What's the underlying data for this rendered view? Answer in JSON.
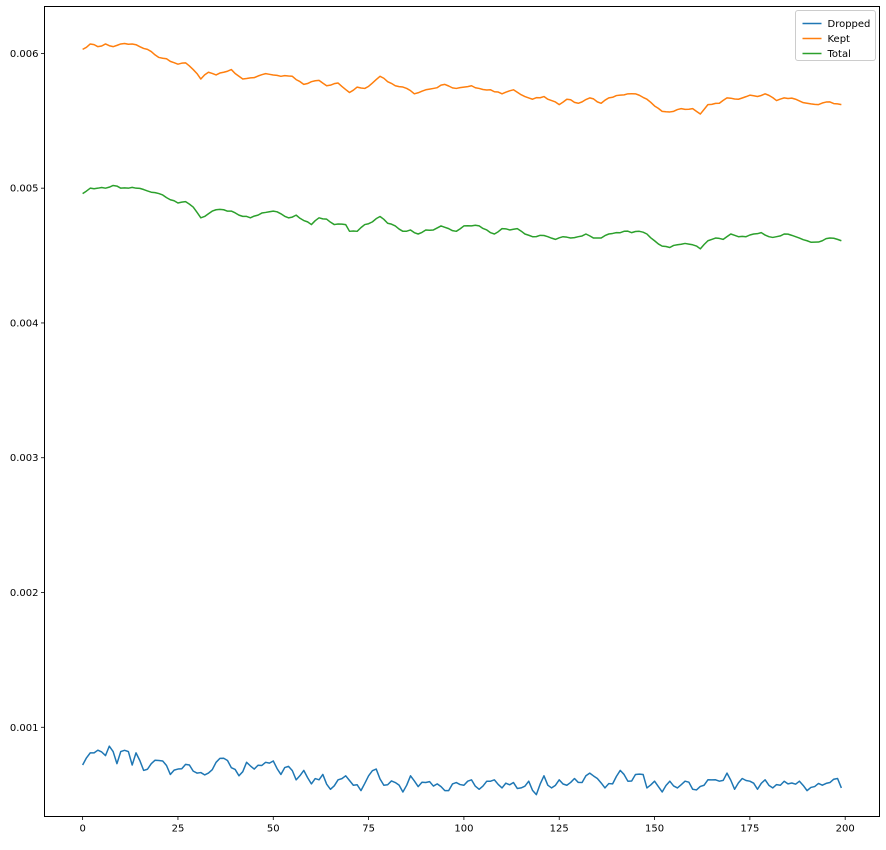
{
  "chart_data": {
    "type": "line",
    "title": "",
    "xlabel": "",
    "ylabel": "",
    "xlim": [
      -10,
      209
    ],
    "ylim": [
      0.000338,
      0.006348
    ],
    "xticks": [
      0,
      25,
      50,
      75,
      100,
      125,
      150,
      175,
      200
    ],
    "xtick_labels": [
      "0",
      "25",
      "50",
      "75",
      "100",
      "125",
      "150",
      "175",
      "200"
    ],
    "yticks": [
      0.001,
      0.002,
      0.003,
      0.004,
      0.005,
      0.006
    ],
    "ytick_labels": [
      "0.001",
      "0.002",
      "0.003",
      "0.004",
      "0.005",
      "0.006"
    ],
    "grid": false,
    "legend": "top-right",
    "series": [
      {
        "name": "Dropped",
        "color": "#1f77b4",
        "keypoints": [
          [
            0,
            0.00072
          ],
          [
            2,
            0.00081
          ],
          [
            4,
            0.00083
          ],
          [
            6,
            0.00079
          ],
          [
            7,
            0.00086
          ],
          [
            9,
            0.00073
          ],
          [
            10,
            0.00082
          ],
          [
            12,
            0.00082
          ],
          [
            13,
            0.00072
          ],
          [
            14,
            0.00081
          ],
          [
            16,
            0.00068
          ],
          [
            18,
            0.00073
          ],
          [
            21,
            0.00075
          ],
          [
            23,
            0.00065
          ],
          [
            25,
            0.00069
          ],
          [
            28,
            0.00072
          ],
          [
            30,
            0.00066
          ],
          [
            33,
            0.00066
          ],
          [
            35,
            0.00074
          ],
          [
            37,
            0.00077
          ],
          [
            39,
            0.0007
          ],
          [
            41,
            0.00064
          ],
          [
            43,
            0.00074
          ],
          [
            45,
            0.00069
          ],
          [
            48,
            0.00074
          ],
          [
            50,
            0.00075
          ],
          [
            52,
            0.00065
          ],
          [
            54,
            0.00071
          ],
          [
            56,
            0.00061
          ],
          [
            58,
            0.00068
          ],
          [
            60,
            0.00058
          ],
          [
            63,
            0.00065
          ],
          [
            65,
            0.00054
          ],
          [
            67,
            0.00061
          ],
          [
            69,
            0.00064
          ],
          [
            71,
            0.00057
          ],
          [
            73,
            0.00053
          ],
          [
            75,
            0.00064
          ],
          [
            77,
            0.00069
          ],
          [
            79,
            0.00057
          ],
          [
            82,
            0.00059
          ],
          [
            84,
            0.00052
          ],
          [
            86,
            0.00064
          ],
          [
            88,
            0.00056
          ],
          [
            90,
            0.00059
          ],
          [
            93,
            0.00058
          ],
          [
            95,
            0.00053
          ],
          [
            98,
            0.00059
          ],
          [
            100,
            0.00057
          ],
          [
            102,
            0.00061
          ],
          [
            104,
            0.00054
          ],
          [
            106,
            0.0006
          ],
          [
            108,
            0.00061
          ],
          [
            110,
            0.00055
          ],
          [
            113,
            0.00059
          ],
          [
            115,
            0.00055
          ],
          [
            117,
            0.0006
          ],
          [
            119,
            0.0005
          ],
          [
            121,
            0.00064
          ],
          [
            123,
            0.00055
          ],
          [
            125,
            0.00061
          ],
          [
            127,
            0.00057
          ],
          [
            129,
            0.00062
          ],
          [
            131,
            0.00059
          ],
          [
            133,
            0.00066
          ],
          [
            135,
            0.00062
          ],
          [
            137,
            0.00055
          ],
          [
            139,
            0.00058
          ],
          [
            141,
            0.00068
          ],
          [
            143,
            0.0006
          ],
          [
            145,
            0.00065
          ],
          [
            147,
            0.00065
          ],
          [
            148,
            0.00055
          ],
          [
            150,
            0.0006
          ],
          [
            152,
            0.00052
          ],
          [
            154,
            0.0006
          ],
          [
            156,
            0.00055
          ],
          [
            158,
            0.0006
          ],
          [
            160,
            0.00054
          ],
          [
            163,
            0.00057
          ],
          [
            165,
            0.00061
          ],
          [
            167,
            0.0006
          ],
          [
            169,
            0.00066
          ],
          [
            171,
            0.00054
          ],
          [
            173,
            0.00062
          ],
          [
            175,
            0.0006
          ],
          [
            177,
            0.00054
          ],
          [
            179,
            0.00061
          ],
          [
            181,
            0.00055
          ],
          [
            183,
            0.00057
          ],
          [
            185,
            0.00058
          ],
          [
            188,
            0.0006
          ],
          [
            190,
            0.00053
          ],
          [
            192,
            0.00056
          ],
          [
            194,
            0.00057
          ],
          [
            196,
            0.00059
          ],
          [
            198,
            0.00062
          ],
          [
            199,
            0.00055
          ]
        ]
      },
      {
        "name": "Kept",
        "color": "#ff7f0e",
        "keypoints": [
          [
            0,
            0.00603
          ],
          [
            2,
            0.00607
          ],
          [
            4,
            0.00605
          ],
          [
            6,
            0.00607
          ],
          [
            8,
            0.00605
          ],
          [
            10,
            0.00607
          ],
          [
            13,
            0.00607
          ],
          [
            15,
            0.00605
          ],
          [
            17,
            0.00603
          ],
          [
            20,
            0.00597
          ],
          [
            22,
            0.00596
          ],
          [
            25,
            0.00592
          ],
          [
            27,
            0.00593
          ],
          [
            30,
            0.00585
          ],
          [
            31,
            0.00581
          ],
          [
            33,
            0.00586
          ],
          [
            35,
            0.00584
          ],
          [
            37,
            0.00586
          ],
          [
            39,
            0.00588
          ],
          [
            42,
            0.00581
          ],
          [
            45,
            0.00582
          ],
          [
            48,
            0.00585
          ],
          [
            50,
            0.00584
          ],
          [
            52,
            0.00583
          ],
          [
            55,
            0.00583
          ],
          [
            58,
            0.00577
          ],
          [
            60,
            0.00579
          ],
          [
            62,
            0.0058
          ],
          [
            64,
            0.00576
          ],
          [
            67,
            0.00578
          ],
          [
            70,
            0.00571
          ],
          [
            72,
            0.00575
          ],
          [
            74,
            0.00574
          ],
          [
            76,
            0.00578
          ],
          [
            78,
            0.00583
          ],
          [
            80,
            0.00579
          ],
          [
            82,
            0.00576
          ],
          [
            85,
            0.00574
          ],
          [
            87,
            0.0057
          ],
          [
            90,
            0.00573
          ],
          [
            92,
            0.00574
          ],
          [
            95,
            0.00577
          ],
          [
            98,
            0.00574
          ],
          [
            100,
            0.00575
          ],
          [
            102,
            0.00576
          ],
          [
            104,
            0.00574
          ],
          [
            107,
            0.00573
          ],
          [
            110,
            0.0057
          ],
          [
            113,
            0.00573
          ],
          [
            116,
            0.00568
          ],
          [
            118,
            0.00566
          ],
          [
            121,
            0.00568
          ],
          [
            123,
            0.00565
          ],
          [
            125,
            0.00562
          ],
          [
            127,
            0.00566
          ],
          [
            130,
            0.00563
          ],
          [
            133,
            0.00567
          ],
          [
            136,
            0.00563
          ],
          [
            138,
            0.00567
          ],
          [
            141,
            0.00569
          ],
          [
            143,
            0.0057
          ],
          [
            145,
            0.0057
          ],
          [
            148,
            0.00566
          ],
          [
            150,
            0.00561
          ],
          [
            152,
            0.00557
          ],
          [
            155,
            0.00557
          ],
          [
            157,
            0.00559
          ],
          [
            160,
            0.00559
          ],
          [
            162,
            0.00555
          ],
          [
            164,
            0.00562
          ],
          [
            167,
            0.00563
          ],
          [
            169,
            0.00567
          ],
          [
            172,
            0.00566
          ],
          [
            175,
            0.00569
          ],
          [
            177,
            0.00568
          ],
          [
            179,
            0.0057
          ],
          [
            182,
            0.00565
          ],
          [
            184,
            0.00567
          ],
          [
            187,
            0.00566
          ],
          [
            190,
            0.00563
          ],
          [
            193,
            0.00562
          ],
          [
            196,
            0.00564
          ],
          [
            199,
            0.00562
          ]
        ]
      },
      {
        "name": "Total",
        "color": "#2ca02c",
        "keypoints": [
          [
            0,
            0.00496
          ],
          [
            2,
            0.005
          ],
          [
            4,
            0.005
          ],
          [
            6,
            0.005
          ],
          [
            8,
            0.00502
          ],
          [
            10,
            0.005
          ],
          [
            12,
            0.005
          ],
          [
            14,
            0.005
          ],
          [
            16,
            0.00499
          ],
          [
            18,
            0.00497
          ],
          [
            20,
            0.00496
          ],
          [
            22,
            0.00493
          ],
          [
            25,
            0.00489
          ],
          [
            27,
            0.0049
          ],
          [
            29,
            0.00486
          ],
          [
            31,
            0.00478
          ],
          [
            33,
            0.00481
          ],
          [
            35,
            0.00484
          ],
          [
            37,
            0.00484
          ],
          [
            39,
            0.00483
          ],
          [
            41,
            0.0048
          ],
          [
            44,
            0.00478
          ],
          [
            46,
            0.0048
          ],
          [
            48,
            0.00482
          ],
          [
            50,
            0.00483
          ],
          [
            52,
            0.00481
          ],
          [
            54,
            0.00478
          ],
          [
            56,
            0.0048
          ],
          [
            58,
            0.00476
          ],
          [
            60,
            0.00473
          ],
          [
            62,
            0.00478
          ],
          [
            64,
            0.00477
          ],
          [
            66,
            0.00473
          ],
          [
            69,
            0.00473
          ],
          [
            70,
            0.00468
          ],
          [
            72,
            0.00468
          ],
          [
            74,
            0.00473
          ],
          [
            76,
            0.00475
          ],
          [
            78,
            0.00479
          ],
          [
            80,
            0.00474
          ],
          [
            82,
            0.00472
          ],
          [
            84,
            0.00468
          ],
          [
            86,
            0.00469
          ],
          [
            88,
            0.00466
          ],
          [
            90,
            0.00469
          ],
          [
            92,
            0.00469
          ],
          [
            94,
            0.00472
          ],
          [
            96,
            0.0047
          ],
          [
            98,
            0.00468
          ],
          [
            100,
            0.00472
          ],
          [
            102,
            0.00472
          ],
          [
            104,
            0.00472
          ],
          [
            106,
            0.00469
          ],
          [
            108,
            0.00466
          ],
          [
            110,
            0.0047
          ],
          [
            112,
            0.00469
          ],
          [
            114,
            0.0047
          ],
          [
            116,
            0.00466
          ],
          [
            118,
            0.00464
          ],
          [
            120,
            0.00465
          ],
          [
            122,
            0.00464
          ],
          [
            124,
            0.00462
          ],
          [
            126,
            0.00464
          ],
          [
            128,
            0.00463
          ],
          [
            130,
            0.00464
          ],
          [
            132,
            0.00466
          ],
          [
            134,
            0.00463
          ],
          [
            136,
            0.00463
          ],
          [
            138,
            0.00466
          ],
          [
            140,
            0.00467
          ],
          [
            142,
            0.00468
          ],
          [
            144,
            0.00467
          ],
          [
            146,
            0.00468
          ],
          [
            148,
            0.00466
          ],
          [
            150,
            0.00461
          ],
          [
            152,
            0.00457
          ],
          [
            154,
            0.00456
          ],
          [
            156,
            0.00458
          ],
          [
            158,
            0.00459
          ],
          [
            160,
            0.00458
          ],
          [
            162,
            0.00455
          ],
          [
            164,
            0.00461
          ],
          [
            166,
            0.00463
          ],
          [
            168,
            0.00462
          ],
          [
            170,
            0.00466
          ],
          [
            172,
            0.00464
          ],
          [
            174,
            0.00464
          ],
          [
            176,
            0.00466
          ],
          [
            178,
            0.00467
          ],
          [
            180,
            0.00464
          ],
          [
            182,
            0.00464
          ],
          [
            184,
            0.00466
          ],
          [
            186,
            0.00465
          ],
          [
            188,
            0.00463
          ],
          [
            190,
            0.00461
          ],
          [
            192,
            0.0046
          ],
          [
            194,
            0.00461
          ],
          [
            196,
            0.00463
          ],
          [
            198,
            0.00462
          ],
          [
            199,
            0.00461
          ]
        ]
      }
    ]
  }
}
